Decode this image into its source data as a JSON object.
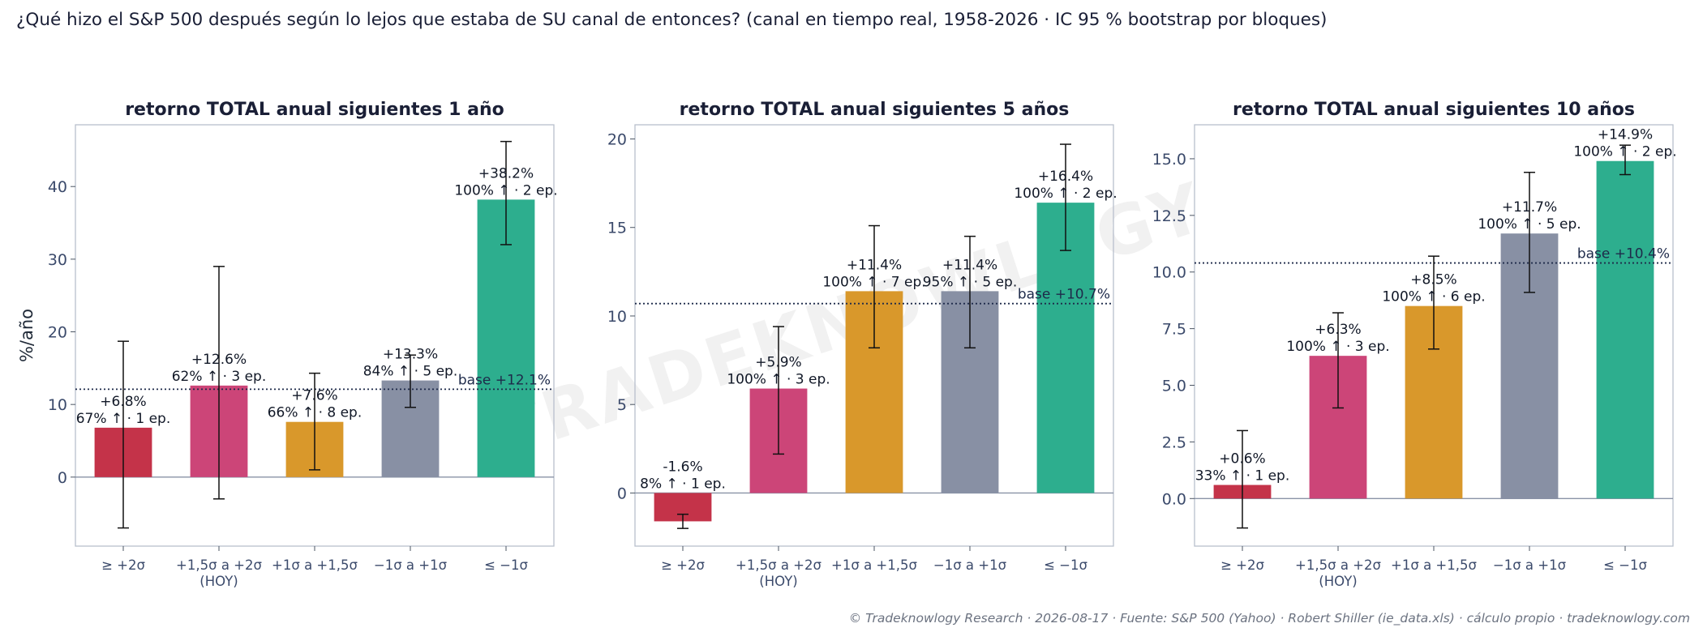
{
  "header": {
    "title": "¿Qué hizo el S&P 500 después según lo lejos que estaba de SU canal de entonces? (canal en tiempo real, 1958-2026 · IC 95 % bootstrap por bloques)"
  },
  "watermark": "TRADEKNOWLOGY",
  "footer": "© Tradeknowlogy Research   ·   2026-08-17   ·   Fuente: S&P 500 (Yahoo) · Robert Shiller (ie_data.xls) · cálculo propio   ·   tradeknowlogy.com",
  "colors": [
    "#c43349",
    "#cc4578",
    "#d9982b",
    "#8890a4",
    "#2dae8e"
  ],
  "chart_data": [
    {
      "type": "bar",
      "title": "retorno TOTAL anual siguientes 1 año",
      "ylabel": "%/año",
      "categories": [
        [
          "≥ +2σ"
        ],
        [
          "+1,5σ a +2σ",
          "(HOY)"
        ],
        [
          "+1σ a +1,5σ"
        ],
        [
          "−1σ a +1σ"
        ],
        [
          "≤ −1σ"
        ]
      ],
      "values": [
        6.8,
        12.6,
        7.6,
        13.3,
        38.2
      ],
      "value_labels": [
        "+6.8%",
        "+12.6%",
        "+7.6%",
        "+13.3%",
        "+38.2%"
      ],
      "stat_labels": [
        "67% ↑ · 1 ep.",
        "62% ↑ · 3 ep.",
        "66% ↑ · 8 ep.",
        "84% ↑ · 5 ep.",
        "100% ↑ · 2 ep."
      ],
      "ci_low": [
        -7.0,
        -3.0,
        1.0,
        9.6,
        32.0
      ],
      "ci_high": [
        18.7,
        29.0,
        14.3,
        16.8,
        46.2
      ],
      "base": 12.1,
      "base_label": "base +12.1%",
      "ylim": [
        -9.5,
        48.5
      ],
      "yticks": [
        0,
        10,
        20,
        30,
        40
      ],
      "ytick_labels": [
        "0",
        "10",
        "20",
        "30",
        "40"
      ]
    },
    {
      "type": "bar",
      "title": "retorno TOTAL anual siguientes 5 años",
      "ylabel": "",
      "categories": [
        [
          "≥ +2σ"
        ],
        [
          "+1,5σ a +2σ",
          "(HOY)"
        ],
        [
          "+1σ a +1,5σ"
        ],
        [
          "−1σ a +1σ"
        ],
        [
          "≤ −1σ"
        ]
      ],
      "values": [
        -1.6,
        5.9,
        11.4,
        11.4,
        16.4
      ],
      "value_labels": [
        "-1.6%",
        "+5.9%",
        "+11.4%",
        "+11.4%",
        "+16.4%"
      ],
      "stat_labels": [
        "8% ↑ · 1 ep.",
        "100% ↑ · 3 ep.",
        "100% ↑ · 7 ep.",
        "95% ↑ · 5 ep.",
        "100% ↑ · 2 ep."
      ],
      "ci_low": [
        -2.0,
        2.2,
        8.2,
        8.2,
        13.7
      ],
      "ci_high": [
        -1.2,
        9.4,
        15.1,
        14.5,
        19.7
      ],
      "base": 10.7,
      "base_label": "base +10.7%",
      "ylim": [
        -3.0,
        20.8
      ],
      "yticks": [
        0,
        5,
        10,
        15,
        20
      ],
      "ytick_labels": [
        "0",
        "5",
        "10",
        "15",
        "20"
      ]
    },
    {
      "type": "bar",
      "title": "retorno TOTAL anual siguientes 10 años",
      "ylabel": "",
      "categories": [
        [
          "≥ +2σ"
        ],
        [
          "+1,5σ a +2σ",
          "(HOY)"
        ],
        [
          "+1σ a +1,5σ"
        ],
        [
          "−1σ a +1σ"
        ],
        [
          "≤ −1σ"
        ]
      ],
      "values": [
        0.6,
        6.3,
        8.5,
        11.7,
        14.9
      ],
      "value_labels": [
        "+0.6%",
        "+6.3%",
        "+8.5%",
        "+11.7%",
        "+14.9%"
      ],
      "stat_labels": [
        "33% ↑ · 1 ep.",
        "100% ↑ · 3 ep.",
        "100% ↑ · 6 ep.",
        "100% ↑ · 5 ep.",
        "100% ↑ · 2 ep."
      ],
      "ci_low": [
        -1.3,
        4.0,
        6.6,
        9.1,
        14.3
      ],
      "ci_high": [
        3.0,
        8.2,
        10.7,
        14.4,
        15.6
      ],
      "base": 10.4,
      "base_label": "base +10.4%",
      "ylim": [
        -2.1,
        16.5
      ],
      "yticks": [
        0,
        2.5,
        5,
        7.5,
        10,
        12.5,
        15
      ],
      "ytick_labels": [
        "0.0",
        "2.5",
        "5.0",
        "7.5",
        "10.0",
        "12.5",
        "15.0"
      ]
    }
  ]
}
